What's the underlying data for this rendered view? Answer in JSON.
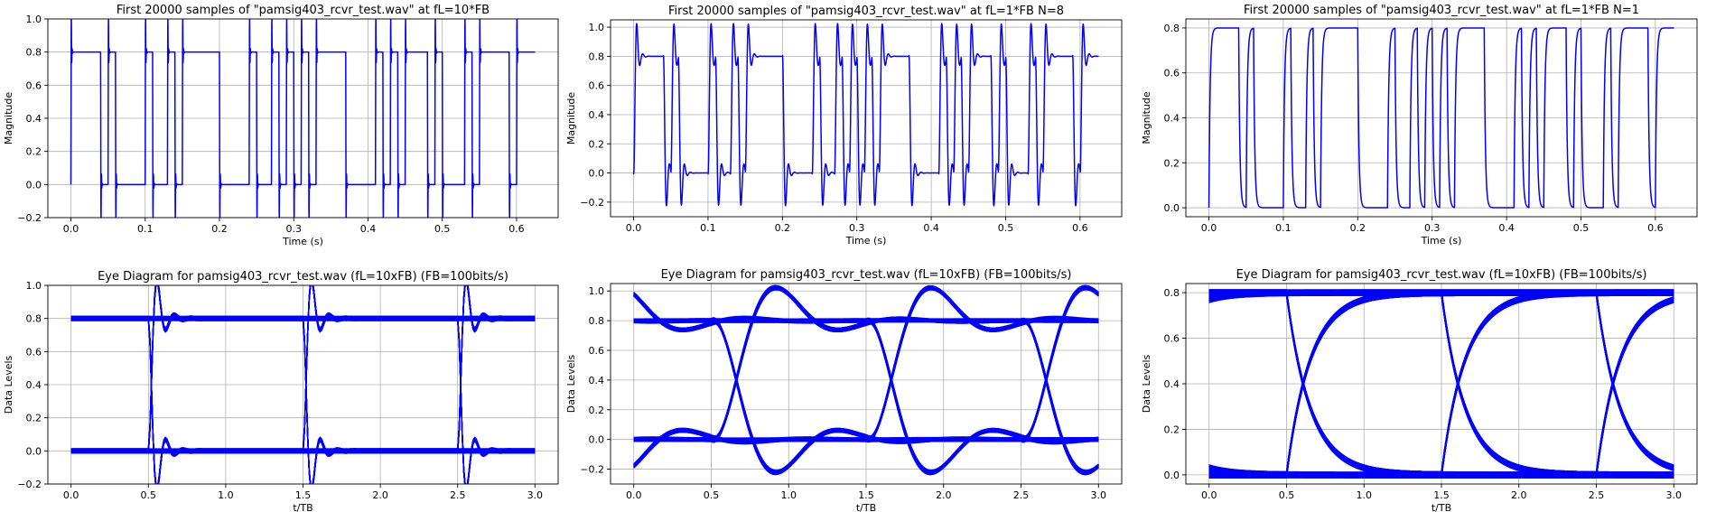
{
  "chart_data": [
    {
      "id": "ts_flx10",
      "type": "line",
      "title": "First 20000 samples of \"pamsig403_rcvr_test.wav\" at fL=10*FB",
      "xlabel": "Time (s)",
      "ylabel": "Magnitude",
      "xlim": [
        -0.031,
        0.656
      ],
      "ylim": [
        -0.2,
        1.0
      ],
      "xticks": [
        0.0,
        0.1,
        0.2,
        0.3,
        0.4,
        0.5,
        0.6
      ],
      "xtick_labels": [
        "0.0",
        "0.1",
        "0.2",
        "0.3",
        "0.4",
        "0.5",
        "0.6"
      ],
      "yticks": [
        -0.2,
        0.0,
        0.2,
        0.4,
        0.6,
        0.8,
        1.0
      ],
      "ytick_labels": [
        "−0.2",
        "0.0",
        "0.2",
        "0.4",
        "0.6",
        "0.8",
        "1.0"
      ],
      "grid": true,
      "bit_rate": 100,
      "bits": [
        1,
        1,
        1,
        1,
        0,
        1,
        0,
        0,
        0,
        0,
        1,
        0,
        0,
        1,
        0,
        1,
        1,
        1,
        1,
        1,
        0,
        0,
        0,
        0,
        1,
        0,
        0,
        1,
        0,
        1,
        0,
        1,
        0,
        1,
        1,
        1,
        1,
        0,
        0,
        0,
        0,
        1,
        0,
        1,
        0,
        1,
        1,
        1,
        0,
        1,
        0,
        0,
        0,
        1,
        0,
        1,
        1,
        1,
        1,
        0,
        1,
        1,
        1
      ],
      "levels": [
        0.0,
        0.8
      ],
      "response": "fast",
      "x_end": 0.625,
      "series": [
        {
          "color": "#0000ff"
        }
      ]
    },
    {
      "id": "ts_flx1_n8",
      "type": "line",
      "title": "First 20000 samples of \"pamsig403_rcvr_test.wav\" at fL=1*FB N=8",
      "xlabel": "Time (s)",
      "ylabel": "Magnitude",
      "xlim": [
        -0.031,
        0.656
      ],
      "ylim": [
        -0.3,
        1.05
      ],
      "xticks": [
        0.0,
        0.1,
        0.2,
        0.3,
        0.4,
        0.5,
        0.6
      ],
      "xtick_labels": [
        "0.0",
        "0.1",
        "0.2",
        "0.3",
        "0.4",
        "0.5",
        "0.6"
      ],
      "yticks": [
        -0.2,
        0.0,
        0.2,
        0.4,
        0.6,
        0.8,
        1.0
      ],
      "ytick_labels": [
        "−0.2",
        "0.0",
        "0.2",
        "0.4",
        "0.6",
        "0.8",
        "1.0"
      ],
      "grid": true,
      "bit_rate": 100,
      "bits": [
        1,
        1,
        1,
        1,
        0,
        1,
        0,
        0,
        0,
        0,
        1,
        0,
        0,
        1,
        0,
        1,
        1,
        1,
        1,
        1,
        0,
        0,
        0,
        0,
        1,
        0,
        0,
        1,
        0,
        1,
        0,
        1,
        0,
        1,
        1,
        1,
        1,
        0,
        0,
        0,
        0,
        1,
        0,
        1,
        0,
        1,
        1,
        1,
        0,
        1,
        0,
        0,
        0,
        1,
        0,
        1,
        1,
        1,
        1,
        0,
        1,
        1,
        1
      ],
      "levels": [
        0.0,
        0.8
      ],
      "response": "ringing",
      "x_end": 0.625,
      "series": [
        {
          "color": "#0000ff"
        }
      ]
    },
    {
      "id": "ts_flx1_n1",
      "type": "line",
      "title": "First 20000 samples of \"pamsig403_rcvr_test.wav\" at fL=1*FB N=1",
      "xlabel": "Time (s)",
      "ylabel": "Magnitude",
      "xlim": [
        -0.031,
        0.656
      ],
      "ylim": [
        -0.04,
        0.84
      ],
      "xticks": [
        0.0,
        0.1,
        0.2,
        0.3,
        0.4,
        0.5,
        0.6
      ],
      "xtick_labels": [
        "0.0",
        "0.1",
        "0.2",
        "0.3",
        "0.4",
        "0.5",
        "0.6"
      ],
      "yticks": [
        0.0,
        0.2,
        0.4,
        0.6,
        0.8
      ],
      "ytick_labels": [
        "0.0",
        "0.2",
        "0.4",
        "0.6",
        "0.8"
      ],
      "grid": true,
      "bit_rate": 100,
      "bits": [
        1,
        1,
        1,
        1,
        0,
        1,
        0,
        0,
        0,
        0,
        1,
        0,
        0,
        1,
        0,
        1,
        1,
        1,
        1,
        1,
        0,
        0,
        0,
        0,
        1,
        0,
        0,
        1,
        0,
        1,
        0,
        1,
        0,
        1,
        1,
        1,
        1,
        0,
        0,
        0,
        0,
        1,
        0,
        1,
        0,
        1,
        1,
        1,
        0,
        1,
        0,
        0,
        0,
        1,
        0,
        1,
        1,
        1,
        1,
        0,
        1,
        1,
        1
      ],
      "levels": [
        0.0,
        0.8
      ],
      "response": "rc",
      "x_end": 0.625,
      "series": [
        {
          "color": "#0000ff"
        }
      ]
    },
    {
      "id": "eye_flx10",
      "type": "line",
      "title": "Eye Diagram for pamsig403_rcvr_test.wav (fL=10xFB) (FB=100bits/s)",
      "xlabel": "t/TB",
      "ylabel": "Data Levels",
      "xlim": [
        -0.15,
        3.15
      ],
      "ylim": [
        -0.2,
        1.0
      ],
      "xticks": [
        0.0,
        0.5,
        1.0,
        1.5,
        2.0,
        2.5,
        3.0
      ],
      "xtick_labels": [
        "0.0",
        "0.5",
        "1.0",
        "1.5",
        "2.0",
        "2.5",
        "3.0"
      ],
      "yticks": [
        -0.2,
        0.0,
        0.2,
        0.4,
        0.6,
        0.8,
        1.0
      ],
      "ytick_labels": [
        "−0.2",
        "0.0",
        "0.2",
        "0.4",
        "0.6",
        "0.8",
        "1.0"
      ],
      "grid": true,
      "eye_span": 3,
      "transitions_at": [
        0.5,
        1.5,
        2.5
      ],
      "levels": [
        0.0,
        0.8
      ],
      "response": "fast",
      "series": [
        {
          "color": "#0000ff"
        }
      ]
    },
    {
      "id": "eye_flx1_n8",
      "type": "line",
      "title": "Eye Diagram for pamsig403_rcvr_test.wav (fL=10xFB) (FB=100bits/s)",
      "xlabel": "t/TB",
      "ylabel": "Data Levels",
      "xlim": [
        -0.15,
        3.15
      ],
      "ylim": [
        -0.3,
        1.05
      ],
      "xticks": [
        0.0,
        0.5,
        1.0,
        1.5,
        2.0,
        2.5,
        3.0
      ],
      "xtick_labels": [
        "0.0",
        "0.5",
        "1.0",
        "1.5",
        "2.0",
        "2.5",
        "3.0"
      ],
      "yticks": [
        -0.2,
        0.0,
        0.2,
        0.4,
        0.6,
        0.8,
        1.0
      ],
      "ytick_labels": [
        "−0.2",
        "0.0",
        "0.2",
        "0.4",
        "0.6",
        "0.8",
        "1.0"
      ],
      "grid": true,
      "eye_span": 3,
      "transitions_at": [
        0.5,
        1.5,
        2.5
      ],
      "levels": [
        0.0,
        0.8
      ],
      "response": "ringing",
      "series": [
        {
          "color": "#0000ff"
        }
      ]
    },
    {
      "id": "eye_flx1_n1",
      "type": "line",
      "title": "Eye Diagram for pamsig403_rcvr_test.wav (fL=10xFB) (FB=100bits/s)",
      "xlabel": "t/TB",
      "ylabel": "Data Levels",
      "xlim": [
        -0.15,
        3.15
      ],
      "ylim": [
        -0.04,
        0.84
      ],
      "xticks": [
        0.0,
        0.5,
        1.0,
        1.5,
        2.0,
        2.5,
        3.0
      ],
      "xtick_labels": [
        "0.0",
        "0.5",
        "1.0",
        "1.5",
        "2.0",
        "2.5",
        "3.0"
      ],
      "yticks": [
        0.0,
        0.2,
        0.4,
        0.6,
        0.8
      ],
      "ytick_labels": [
        "0.0",
        "0.2",
        "0.4",
        "0.6",
        "0.8"
      ],
      "grid": true,
      "eye_span": 3,
      "transitions_at": [
        0.5,
        1.5,
        2.5
      ],
      "levels": [
        0.0,
        0.8
      ],
      "response": "rc",
      "series": [
        {
          "color": "#0000ff"
        }
      ]
    }
  ]
}
